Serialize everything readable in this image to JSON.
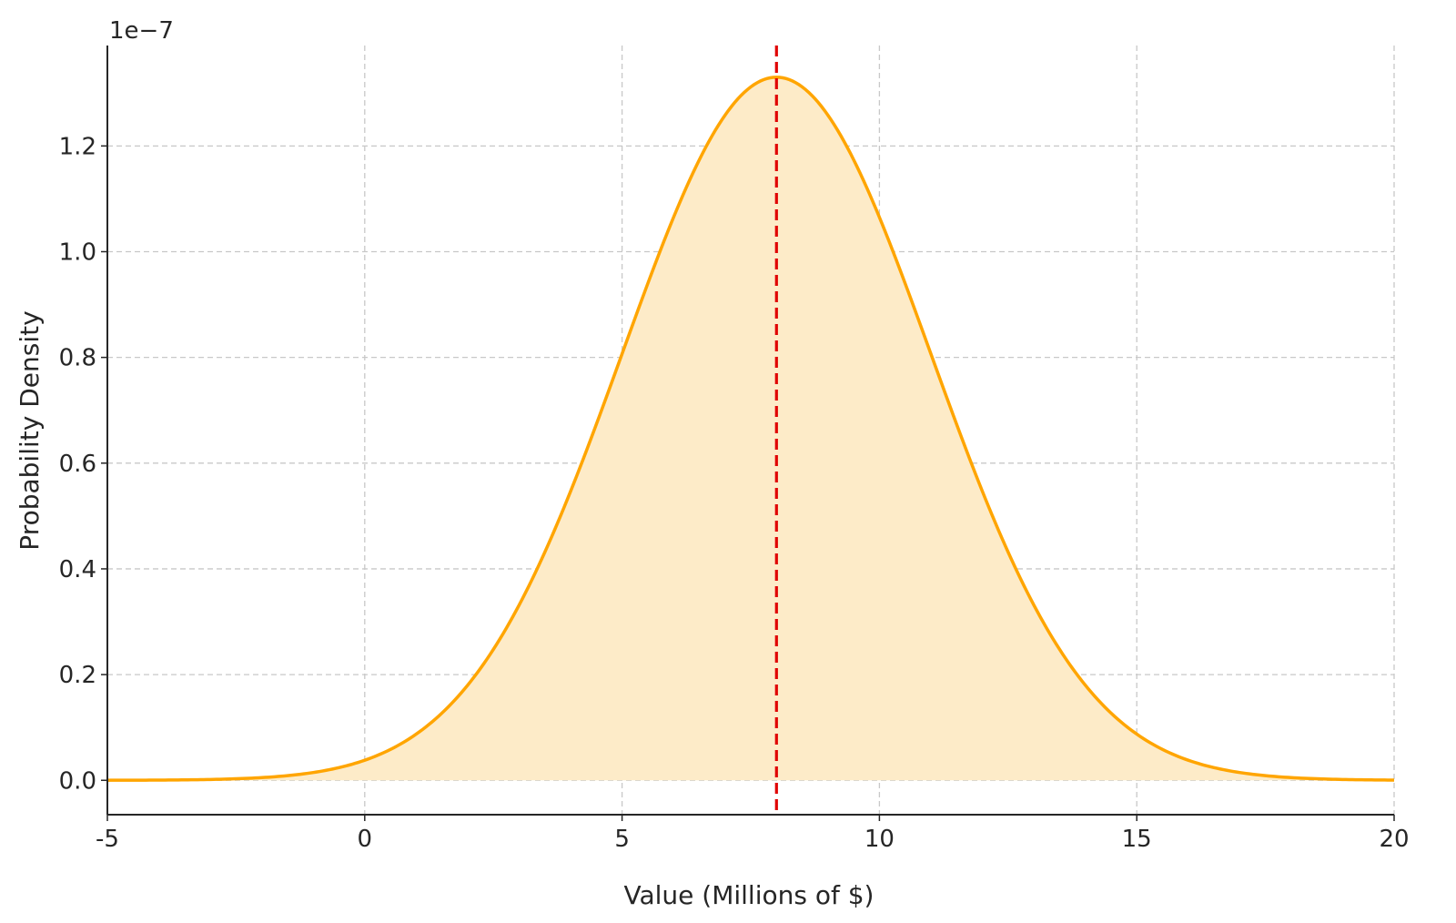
{
  "chart_data": {
    "type": "area",
    "title": "",
    "xlabel": "Value (Millions of $)",
    "ylabel": "Probability Density",
    "y_offset_label": "1e−7",
    "xlim": [
      -5,
      20
    ],
    "ylim": [
      -0.065,
      1.39
    ],
    "x_ticks": [
      -5,
      0,
      5,
      10,
      15,
      20
    ],
    "x_tick_labels": [
      "-5",
      "0",
      "5",
      "10",
      "15",
      "20"
    ],
    "y_ticks": [
      0.0,
      0.2,
      0.4,
      0.6,
      0.8,
      1.0,
      1.2
    ],
    "y_tick_labels": [
      "0.0",
      "0.2",
      "0.4",
      "0.6",
      "0.8",
      "1.0",
      "1.2"
    ],
    "grid": true,
    "series": [
      {
        "distribution": "normal",
        "mean": 8,
        "std": 3,
        "x_range": [
          -5,
          20
        ],
        "peak_density": 1.33,
        "line_color": "#FFA500",
        "fill_color": "#FDEBC8"
      }
    ],
    "reference_line": {
      "x": 8,
      "color": "#E00000",
      "style": "dashed"
    }
  }
}
